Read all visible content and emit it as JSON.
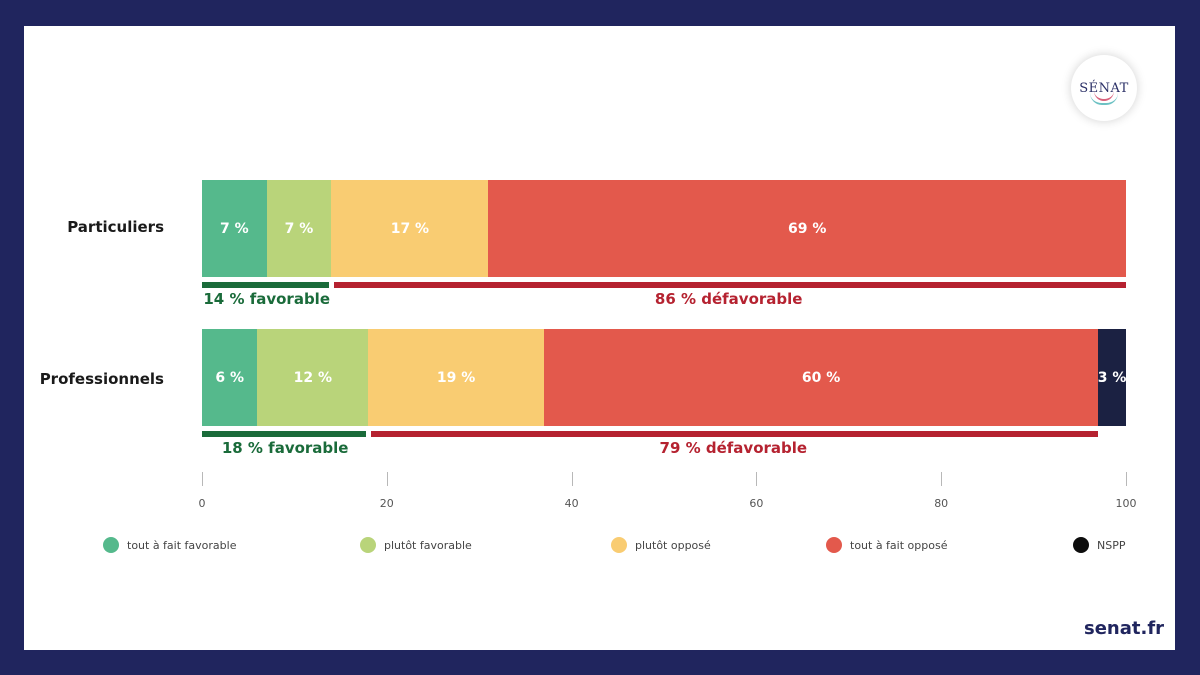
{
  "brand": {
    "logo_text": "SÉNAT",
    "footer": "senat.fr"
  },
  "colors": {
    "frame": "#20255e",
    "favorable_line": "#1a6b3a",
    "defavorable_line": "#b52230"
  },
  "chart_data": {
    "type": "bar",
    "orientation": "horizontal",
    "stacked": true,
    "categories": [
      "Particuliers",
      "Professionnels"
    ],
    "series": [
      {
        "name": "tout à fait favorable",
        "color": "#55b98c",
        "values": [
          7,
          6
        ],
        "labels": [
          "7 %",
          "6 %"
        ]
      },
      {
        "name": "plutôt favorable",
        "color": "#b9d47a",
        "values": [
          7,
          12
        ],
        "labels": [
          "7 %",
          "12 %"
        ]
      },
      {
        "name": "plutôt opposé",
        "color": "#f9cc72",
        "values": [
          17,
          19
        ],
        "labels": [
          "17 %",
          "19 %"
        ]
      },
      {
        "name": "tout à fait opposé",
        "color": "#e3594c",
        "values": [
          69,
          60
        ],
        "labels": [
          "69 %",
          "60 %"
        ]
      },
      {
        "name": "NSPP",
        "color": "#1b2142",
        "values": [
          0,
          3
        ],
        "labels": [
          "",
          "3 %"
        ]
      }
    ],
    "summaries": [
      {
        "favorable": 14,
        "favorable_label": "14 % favorable",
        "defavorable": 86,
        "defavorable_label": "86 % défavorable"
      },
      {
        "favorable": 18,
        "favorable_label": "18 %  favorable",
        "defavorable": 79,
        "defavorable_label": "79 % défavorable"
      }
    ],
    "xlim": [
      0,
      100
    ],
    "xticks": [
      0,
      20,
      40,
      60,
      80,
      100
    ],
    "xtick_labels": [
      "0",
      "20",
      "40",
      "60",
      "80",
      "100"
    ],
    "legend": {
      "placement": "bottom",
      "entries": [
        "tout à fait favorable",
        "plutôt favorable",
        "plutôt opposé",
        "tout à fait opposé",
        "NSPP"
      ],
      "dot_colors": [
        "#55b98c",
        "#b9d47a",
        "#f9cc72",
        "#e3594c",
        "#0d0d0d"
      ]
    },
    "title": "",
    "xlabel": "",
    "ylabel": ""
  }
}
